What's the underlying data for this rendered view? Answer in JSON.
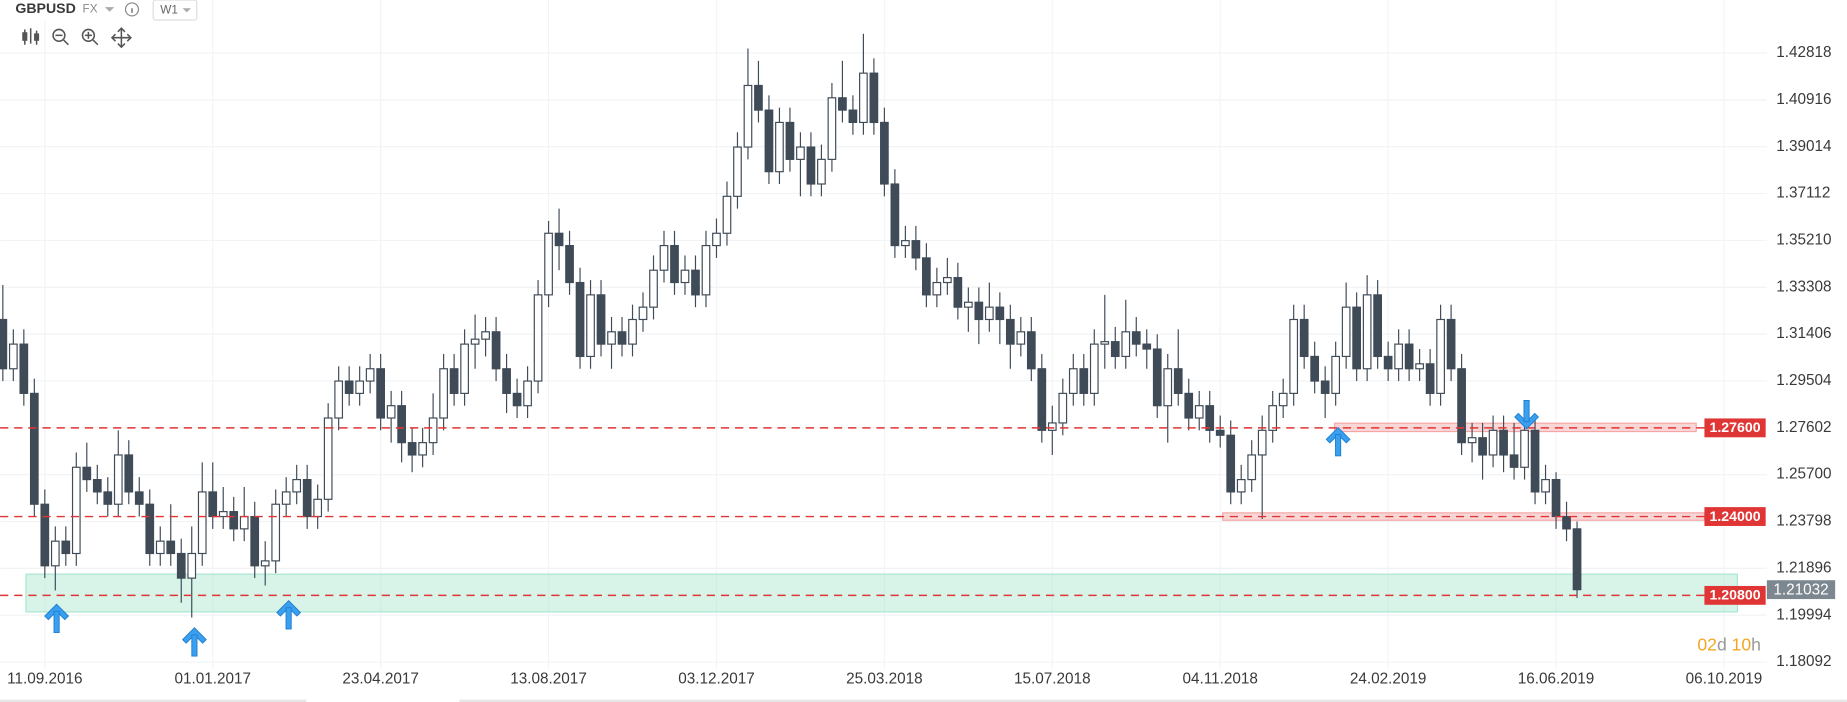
{
  "header": {
    "symbol": "GBPUSD",
    "market": "FX",
    "interval": "W1"
  },
  "chart_data": {
    "type": "candlestick",
    "up_color": "#ffffff",
    "down_color": "#3f4b57",
    "outline_color": "#3f4b57",
    "grid": true,
    "ylim": [
      1.1781,
      1.4497
    ],
    "yticks": [
      1.42818,
      1.40916,
      1.39014,
      1.37112,
      {
        "value": 1.3521,
        "label": "1.35210"
      },
      1.33308,
      1.31406,
      1.29504,
      1.27602,
      {
        "value": 1.257,
        "label": "1.25700"
      },
      1.23798,
      1.21896,
      1.19994,
      1.18092
    ],
    "categories": [
      null,
      null,
      null,
      null,
      "11.09.2016",
      null,
      null,
      null,
      null,
      null,
      null,
      null,
      null,
      null,
      null,
      null,
      null,
      null,
      null,
      null,
      "01.01.2017",
      null,
      null,
      null,
      null,
      null,
      null,
      null,
      null,
      null,
      null,
      null,
      null,
      null,
      null,
      null,
      "23.04.2017",
      null,
      null,
      null,
      null,
      null,
      null,
      null,
      null,
      null,
      null,
      null,
      null,
      null,
      null,
      null,
      "13.08.2017",
      null,
      null,
      null,
      null,
      null,
      null,
      null,
      null,
      null,
      null,
      null,
      null,
      null,
      null,
      null,
      "03.12.2017",
      null,
      null,
      null,
      null,
      null,
      null,
      null,
      null,
      null,
      null,
      null,
      null,
      null,
      null,
      null,
      "25.03.2018",
      null,
      null,
      null,
      null,
      null,
      null,
      null,
      null,
      null,
      null,
      null,
      null,
      null,
      null,
      null,
      "15.07.2018",
      null,
      null,
      null,
      null,
      null,
      null,
      null,
      null,
      null,
      null,
      null,
      null,
      null,
      null,
      null,
      "04.11.2018",
      null,
      null,
      null,
      null,
      null,
      null,
      null,
      null,
      null,
      null,
      null,
      null,
      null,
      null,
      null,
      "24.02.2019",
      null,
      null,
      null,
      null,
      null,
      null,
      null,
      null,
      null,
      null,
      null,
      null,
      null,
      null,
      null,
      "16.06.2019",
      null,
      null,
      null,
      null,
      null,
      null,
      null,
      null,
      null,
      null,
      null,
      null,
      null,
      null,
      null,
      "06.10.2019"
    ],
    "open": [
      1.32,
      1.3,
      1.31,
      1.29,
      1.245,
      1.22,
      1.23,
      1.225,
      1.26,
      1.255,
      1.25,
      1.245,
      1.265,
      1.25,
      1.245,
      1.225,
      1.23,
      1.225,
      1.215,
      1.225,
      1.25,
      1.24,
      1.242,
      1.235,
      1.24,
      1.22,
      1.222,
      1.245,
      1.25,
      1.255,
      1.24,
      1.247,
      1.28,
      1.295,
      1.29,
      1.295,
      1.3,
      1.28,
      1.285,
      1.27,
      1.265,
      1.27,
      1.28,
      1.3,
      1.29,
      1.31,
      1.312,
      1.315,
      1.3,
      1.29,
      1.285,
      1.295,
      1.33,
      1.355,
      1.35,
      1.335,
      1.305,
      1.33,
      1.31,
      1.315,
      1.31,
      1.32,
      1.325,
      1.34,
      1.35,
      1.335,
      1.34,
      1.33,
      1.35,
      1.355,
      1.37,
      1.39,
      1.415,
      1.405,
      1.38,
      1.4,
      1.385,
      1.39,
      1.375,
      1.385,
      1.41,
      1.405,
      1.4,
      1.42,
      1.4,
      1.375,
      1.35,
      1.352,
      1.345,
      1.33,
      1.335,
      1.337,
      1.325,
      1.327,
      1.32,
      1.325,
      1.32,
      1.31,
      1.315,
      1.3,
      1.275,
      1.278,
      1.29,
      1.3,
      1.29,
      1.31,
      1.311,
      1.305,
      1.315,
      1.31,
      1.308,
      1.285,
      1.3,
      1.29,
      1.28,
      1.285,
      1.275,
      1.273,
      1.25,
      1.255,
      1.265,
      1.275,
      1.285,
      1.29,
      1.32,
      1.305,
      1.295,
      1.29,
      1.305,
      1.325,
      1.3,
      1.33,
      1.305,
      1.3,
      1.31,
      1.3,
      1.302,
      1.29,
      1.32,
      1.3,
      1.27,
      1.272,
      1.265,
      1.275,
      1.265,
      1.26,
      1.275,
      1.25,
      1.255,
      1.24,
      1.235,
      null,
      null,
      null,
      null,
      null,
      null,
      null,
      null,
      null,
      null,
      null,
      null,
      null,
      null
    ],
    "high": [
      1.334,
      1.316,
      1.316,
      1.296,
      1.251,
      1.236,
      1.236,
      1.266,
      1.27,
      1.261,
      1.256,
      1.275,
      1.271,
      1.256,
      1.251,
      1.236,
      1.245,
      1.231,
      1.236,
      1.262,
      1.262,
      1.252,
      1.248,
      1.252,
      1.246,
      1.23,
      1.251,
      1.256,
      1.261,
      1.261,
      1.253,
      1.286,
      1.301,
      1.301,
      1.301,
      1.306,
      1.306,
      1.291,
      1.291,
      1.276,
      1.276,
      1.29,
      1.306,
      1.306,
      1.316,
      1.322,
      1.321,
      1.321,
      1.306,
      1.296,
      1.301,
      1.336,
      1.36,
      1.365,
      1.356,
      1.341,
      1.336,
      1.336,
      1.321,
      1.321,
      1.326,
      1.331,
      1.346,
      1.356,
      1.356,
      1.346,
      1.346,
      1.356,
      1.361,
      1.376,
      1.396,
      1.43,
      1.425,
      1.411,
      1.406,
      1.406,
      1.396,
      1.396,
      1.391,
      1.416,
      1.425,
      1.411,
      1.436,
      1.426,
      1.406,
      1.381,
      1.358,
      1.358,
      1.351,
      1.341,
      1.345,
      1.343,
      1.333,
      1.333,
      1.335,
      1.331,
      1.326,
      1.321,
      1.321,
      1.306,
      1.285,
      1.296,
      1.306,
      1.306,
      1.316,
      1.33,
      1.317,
      1.328,
      1.321,
      1.316,
      1.314,
      1.306,
      1.316,
      1.296,
      1.291,
      1.291,
      1.281,
      1.279,
      1.261,
      1.271,
      1.281,
      1.291,
      1.296,
      1.326,
      1.326,
      1.311,
      1.301,
      1.311,
      1.335,
      1.331,
      1.338,
      1.336,
      1.311,
      1.316,
      1.316,
      1.308,
      1.308,
      1.326,
      1.326,
      1.306,
      1.278,
      1.278,
      1.281,
      1.281,
      1.278,
      1.281,
      1.281,
      1.261,
      1.258,
      1.246,
      1.238,
      null,
      null,
      null,
      null,
      null,
      null,
      null,
      null,
      null,
      null,
      null,
      null,
      null,
      null
    ],
    "low": [
      1.295,
      1.295,
      1.285,
      1.24,
      1.215,
      1.21,
      1.22,
      1.22,
      1.25,
      1.245,
      1.24,
      1.24,
      1.245,
      1.24,
      1.22,
      1.22,
      1.22,
      1.205,
      1.199,
      1.22,
      1.235,
      1.235,
      1.23,
      1.23,
      1.215,
      1.212,
      1.217,
      1.24,
      1.245,
      1.235,
      1.235,
      1.242,
      1.275,
      1.285,
      1.285,
      1.29,
      1.275,
      1.27,
      1.262,
      1.258,
      1.26,
      1.265,
      1.275,
      1.285,
      1.285,
      1.3,
      1.305,
      1.295,
      1.282,
      1.28,
      1.28,
      1.29,
      1.325,
      1.34,
      1.33,
      1.3,
      1.3,
      1.305,
      1.3,
      1.305,
      1.305,
      1.315,
      1.32,
      1.335,
      1.33,
      1.33,
      1.325,
      1.325,
      1.345,
      1.35,
      1.365,
      1.385,
      1.4,
      1.375,
      1.375,
      1.38,
      1.37,
      1.37,
      1.37,
      1.38,
      1.4,
      1.395,
      1.395,
      1.395,
      1.37,
      1.345,
      1.345,
      1.34,
      1.325,
      1.325,
      1.33,
      1.32,
      1.315,
      1.31,
      1.315,
      1.31,
      1.3,
      1.305,
      1.295,
      1.27,
      1.265,
      1.273,
      1.285,
      1.285,
      1.285,
      1.3,
      1.3,
      1.3,
      1.305,
      1.3,
      1.28,
      1.27,
      1.285,
      1.275,
      1.275,
      1.27,
      1.268,
      1.245,
      1.245,
      1.25,
      1.239,
      1.27,
      1.28,
      1.285,
      1.3,
      1.29,
      1.28,
      1.285,
      1.3,
      1.295,
      1.295,
      1.3,
      1.295,
      1.295,
      1.295,
      1.295,
      1.285,
      1.285,
      1.295,
      1.265,
      1.262,
      1.255,
      1.26,
      1.258,
      1.255,
      1.255,
      1.245,
      1.245,
      1.235,
      1.23,
      1.207,
      null,
      null,
      null,
      null,
      null,
      null,
      null,
      null,
      null,
      null,
      null,
      null,
      null,
      null
    ],
    "close": [
      1.3,
      1.31,
      1.29,
      1.245,
      1.22,
      1.23,
      1.225,
      1.26,
      1.255,
      1.25,
      1.245,
      1.265,
      1.25,
      1.245,
      1.225,
      1.23,
      1.225,
      1.215,
      1.225,
      1.25,
      1.24,
      1.242,
      1.235,
      1.24,
      1.22,
      1.222,
      1.245,
      1.25,
      1.255,
      1.24,
      1.247,
      1.28,
      1.295,
      1.29,
      1.295,
      1.3,
      1.28,
      1.285,
      1.27,
      1.265,
      1.27,
      1.28,
      1.3,
      1.29,
      1.31,
      1.312,
      1.315,
      1.3,
      1.29,
      1.285,
      1.295,
      1.33,
      1.355,
      1.35,
      1.335,
      1.305,
      1.33,
      1.31,
      1.315,
      1.31,
      1.32,
      1.325,
      1.34,
      1.35,
      1.335,
      1.34,
      1.33,
      1.35,
      1.355,
      1.37,
      1.39,
      1.415,
      1.405,
      1.38,
      1.4,
      1.385,
      1.39,
      1.375,
      1.385,
      1.41,
      1.405,
      1.4,
      1.42,
      1.4,
      1.375,
      1.35,
      1.352,
      1.345,
      1.33,
      1.335,
      1.337,
      1.325,
      1.327,
      1.32,
      1.325,
      1.32,
      1.31,
      1.315,
      1.3,
      1.275,
      1.278,
      1.29,
      1.3,
      1.29,
      1.31,
      1.311,
      1.305,
      1.315,
      1.31,
      1.308,
      1.285,
      1.3,
      1.29,
      1.28,
      1.285,
      1.275,
      1.273,
      1.25,
      1.255,
      1.265,
      1.275,
      1.285,
      1.29,
      1.32,
      1.305,
      1.295,
      1.29,
      1.305,
      1.325,
      1.3,
      1.33,
      1.305,
      1.3,
      1.31,
      1.3,
      1.302,
      1.29,
      1.32,
      1.3,
      1.27,
      1.272,
      1.265,
      1.275,
      1.265,
      1.26,
      1.275,
      1.25,
      1.255,
      1.24,
      1.235,
      1.21032,
      null,
      null,
      null,
      null,
      null,
      null,
      null,
      null,
      null,
      null,
      null,
      null,
      null,
      null
    ],
    "levels": [
      {
        "value": 1.276,
        "label": "1.27600",
        "color": "#e03535"
      },
      {
        "value": 1.24,
        "label": "1.24000",
        "color": "#e03535"
      },
      {
        "value": 1.208,
        "label": "1.20800",
        "color": "#e03535"
      }
    ],
    "zones": [
      {
        "ymin": 1.2745,
        "ymax": 1.2779,
        "color": "#f4a6a6"
      },
      {
        "ymin": 1.2385,
        "ymax": 1.2415,
        "color": "#f4a6a6"
      },
      {
        "ymin": 1.2013,
        "ymax": 1.2166,
        "color": "#a8e6cf"
      }
    ],
    "last_price": {
      "value": 1.21032,
      "label": "1.21032",
      "color": "#7d8790"
    },
    "timer": [
      "02",
      "d",
      "10",
      "h"
    ]
  }
}
